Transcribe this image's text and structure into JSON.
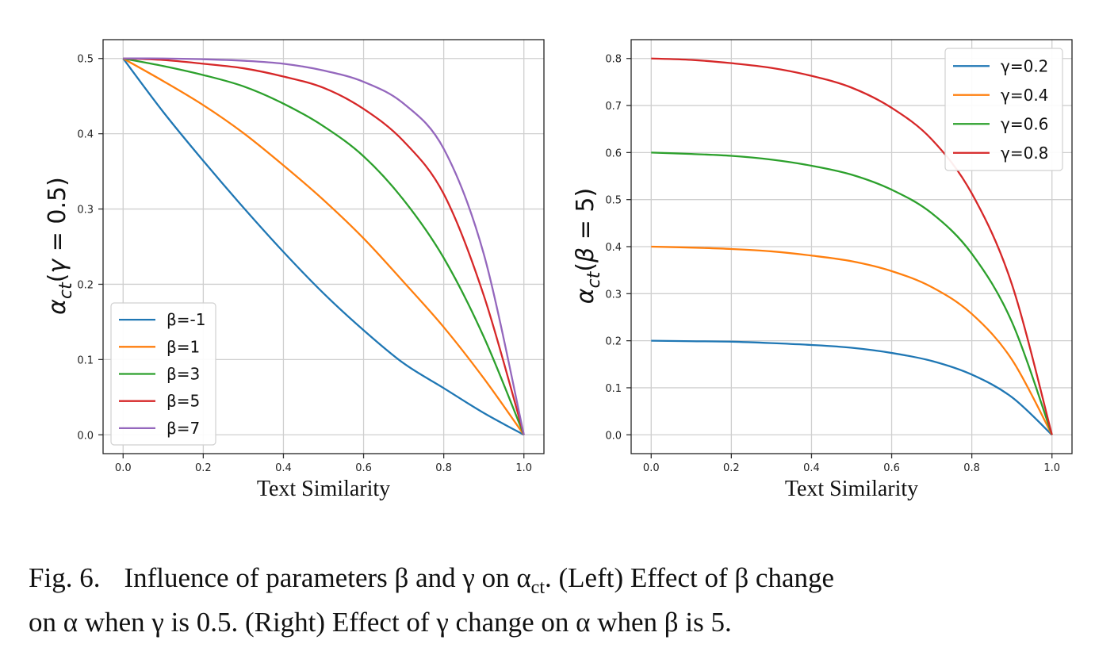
{
  "chart_data": [
    {
      "type": "line",
      "xlabel": "Text Similarity",
      "ylabel": "α_ct(γ = 0.5)",
      "xlim": [
        -0.05,
        1.05
      ],
      "ylim": [
        -0.025,
        0.525
      ],
      "xticks": [
        "0.0",
        "0.2",
        "0.4",
        "0.6",
        "0.8",
        "1.0"
      ],
      "yticks": [
        "0.0",
        "0.1",
        "0.2",
        "0.3",
        "0.4",
        "0.5"
      ],
      "grid": true,
      "legend_position": "lower-left",
      "x": [
        0.0,
        0.1,
        0.2,
        0.3,
        0.4,
        0.5,
        0.6,
        0.7,
        0.8,
        0.9,
        1.0
      ],
      "series": [
        {
          "name": "β=-1",
          "color": "#1f77b4",
          "values": [
            0.5,
            0.429,
            0.364,
            0.302,
            0.243,
            0.188,
            0.139,
            0.095,
            0.062,
            0.029,
            0.0
          ]
        },
        {
          "name": "β=1",
          "color": "#ff7f0e",
          "values": [
            0.5,
            0.47,
            0.438,
            0.401,
            0.358,
            0.312,
            0.261,
            0.203,
            0.143,
            0.075,
            0.0
          ]
        },
        {
          "name": "β=3",
          "color": "#2ca02c",
          "values": [
            0.5,
            0.49,
            0.478,
            0.463,
            0.44,
            0.41,
            0.37,
            0.312,
            0.235,
            0.13,
            0.0
          ]
        },
        {
          "name": "β=5",
          "color": "#d62728",
          "values": [
            0.5,
            0.498,
            0.493,
            0.487,
            0.476,
            0.461,
            0.433,
            0.39,
            0.32,
            0.185,
            0.0
          ]
        },
        {
          "name": "β=7",
          "color": "#9467bd",
          "values": [
            0.5,
            0.5,
            0.499,
            0.497,
            0.493,
            0.484,
            0.469,
            0.44,
            0.38,
            0.24,
            0.0
          ]
        }
      ]
    },
    {
      "type": "line",
      "xlabel": "Text Similarity",
      "ylabel": "α_ct(β = 5)",
      "xlim": [
        -0.05,
        1.05
      ],
      "ylim": [
        -0.04,
        0.84
      ],
      "xticks": [
        "0.0",
        "0.2",
        "0.4",
        "0.6",
        "0.8",
        "1.0"
      ],
      "yticks": [
        "0.0",
        "0.1",
        "0.2",
        "0.3",
        "0.4",
        "0.5",
        "0.6",
        "0.7",
        "0.8"
      ],
      "grid": true,
      "legend_position": "top-right",
      "x": [
        0.0,
        0.1,
        0.2,
        0.3,
        0.4,
        0.5,
        0.6,
        0.7,
        0.8,
        0.9,
        1.0
      ],
      "series": [
        {
          "name": "γ=0.2",
          "color": "#1f77b4",
          "values": [
            0.2,
            0.199,
            0.198,
            0.195,
            0.191,
            0.185,
            0.174,
            0.157,
            0.128,
            0.08,
            0.0
          ]
        },
        {
          "name": "γ=0.4",
          "color": "#ff7f0e",
          "values": [
            0.4,
            0.398,
            0.395,
            0.39,
            0.381,
            0.369,
            0.348,
            0.314,
            0.257,
            0.16,
            0.0
          ]
        },
        {
          "name": "γ=0.6",
          "color": "#2ca02c",
          "values": [
            0.6,
            0.597,
            0.593,
            0.585,
            0.572,
            0.553,
            0.521,
            0.471,
            0.385,
            0.24,
            0.0
          ]
        },
        {
          "name": "γ=0.8",
          "color": "#d62728",
          "values": [
            0.8,
            0.797,
            0.79,
            0.78,
            0.763,
            0.738,
            0.695,
            0.628,
            0.513,
            0.32,
            0.0
          ]
        }
      ]
    }
  ],
  "caption": {
    "label": "Fig. 6.",
    "line1": "Influence of parameters β and γ on α",
    "line1_sub": "ct",
    "line1_rest": ". (Left) Effect of β change",
    "line2": "on α when γ is 0.5. (Right) Effect of γ change on α when β is 5."
  }
}
